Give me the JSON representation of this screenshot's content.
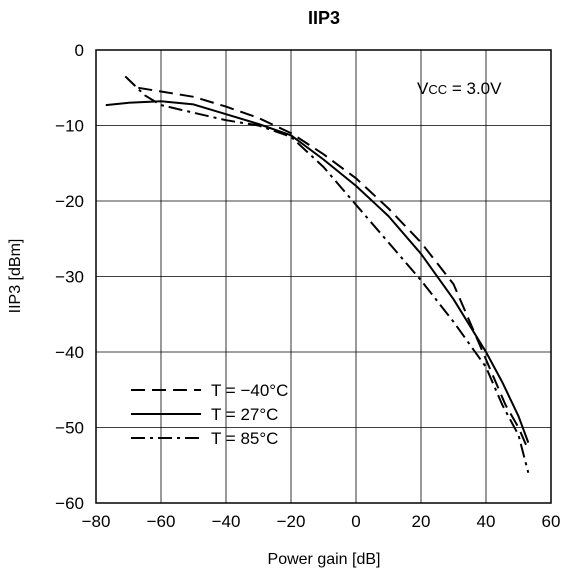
{
  "chart_data": {
    "type": "line",
    "title": "IIP3",
    "xlabel": "Power gain [dB]",
    "ylabel": "IIP3 [dBm]",
    "xlim": [
      -80,
      60
    ],
    "ylim": [
      -60,
      0
    ],
    "xticks": [
      -80,
      -60,
      -40,
      -20,
      0,
      20,
      40,
      60
    ],
    "yticks": [
      0,
      -10,
      -20,
      -30,
      -40,
      -50,
      -60
    ],
    "xtick_labels": [
      "−80",
      "−60",
      "−40",
      "−20",
      "0",
      "20",
      "40",
      "60"
    ],
    "ytick_labels": [
      "0",
      "−10",
      "−20",
      "−30",
      "−40",
      "−50",
      "−60"
    ],
    "grid": true,
    "legend_position": "bottom-left",
    "annotation": {
      "main": "V",
      "sub": "CC",
      "rest": " = 3.0V"
    },
    "series": [
      {
        "name": "T = −40°C",
        "dash": "dashed",
        "x": [
          -67,
          -60,
          -50,
          -40,
          -30,
          -20,
          -10,
          0,
          10,
          20,
          30,
          38,
          42,
          46,
          50,
          53
        ],
        "y": [
          -5,
          -5.5,
          -6.2,
          -7.5,
          -9,
          -11,
          -13.8,
          -17,
          -21,
          -25.5,
          -31,
          -39,
          -43,
          -47,
          -50,
          -53
        ]
      },
      {
        "name": "T = 27°C",
        "dash": "solid",
        "x": [
          -77,
          -70,
          -60,
          -50,
          -40,
          -30,
          -20,
          -10,
          0,
          10,
          20,
          30,
          40,
          45,
          50,
          53
        ],
        "y": [
          -7.3,
          -7,
          -6.8,
          -7.2,
          -8.5,
          -9.8,
          -11.3,
          -14.5,
          -18,
          -22,
          -27,
          -33,
          -40,
          -44,
          -48.5,
          -52
        ]
      },
      {
        "name": "T = 85°C",
        "dash": "dash-dot",
        "x": [
          -71,
          -65,
          -60,
          -50,
          -40,
          -30,
          -20,
          -10,
          0,
          10,
          20,
          30,
          40,
          45,
          50,
          53
        ],
        "y": [
          -3.5,
          -6,
          -7.3,
          -8.3,
          -9.3,
          -10,
          -11.5,
          -15.5,
          -20.5,
          -25.5,
          -30.5,
          -36,
          -42,
          -47,
          -51,
          -56
        ]
      }
    ]
  }
}
